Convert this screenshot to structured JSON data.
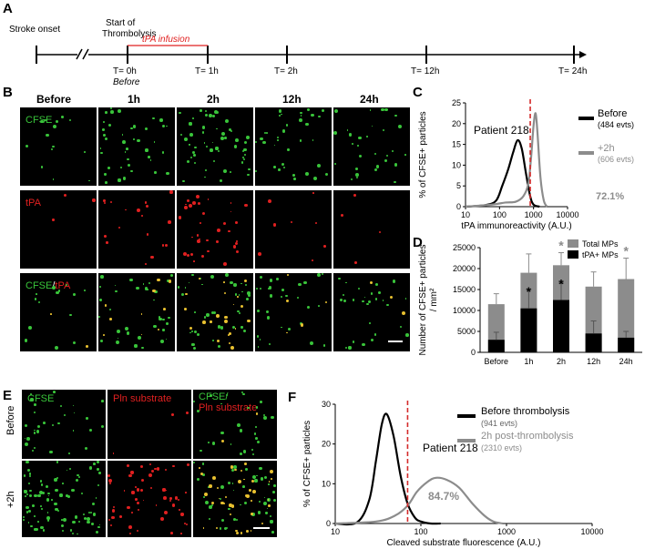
{
  "panel_labels": {
    "a": "A",
    "b": "B",
    "c": "C",
    "d": "D",
    "e": "E",
    "f": "F"
  },
  "timeline": {
    "stroke_onset": "Stroke onset",
    "start_thrombolysis_1": "Start of",
    "start_thrombolysis_2": "Thrombolysis",
    "tpa_infusion": "tPA infusion",
    "t0": "T= 0h",
    "before": "Before",
    "t1": "T= 1h",
    "t2": "T= 2h",
    "t12": "T= 12h",
    "t24": "T= 24h"
  },
  "panel_b": {
    "columns": [
      "Before",
      "1h",
      "2h",
      "12h",
      "24h"
    ],
    "row_cfse": "CFSE",
    "row_tpa": "tPA",
    "merge_a": "CFSE",
    "merge_sep": "/",
    "merge_b": "tPA"
  },
  "panel_e": {
    "col_cfse": "CFSE",
    "col_pln": "Pln substrate",
    "merge_a": "CFSE/",
    "merge_b": "Pln substrate",
    "row_before": "Before",
    "row_2h": "+2h"
  },
  "colors": {
    "green": "#39c43a",
    "red": "#e02020",
    "gray": "#8c8c8c",
    "dashed": "#d42a2a",
    "orange": "#e8c030"
  },
  "chart_data": [
    {
      "id": "C",
      "type": "line",
      "title": "Patient 218",
      "xlabel": "tPA immunoreactivity (A.U.)",
      "ylabel": "% of CFSE+ particles",
      "xscale": "log",
      "xlim": [
        10,
        10000
      ],
      "ylim": [
        0,
        25
      ],
      "xticks": [
        "10",
        "100",
        "1000",
        "10000"
      ],
      "yticks": [
        "0",
        "5",
        "10",
        "15",
        "20",
        "25"
      ],
      "threshold_x": 800,
      "annotation": "72.1%",
      "series": [
        {
          "name": "Before",
          "sub": "(484 evts)",
          "color": "#000000",
          "x": [
            10,
            40,
            80,
            120,
            180,
            250,
            340,
            450,
            600,
            800,
            1000,
            1500
          ],
          "y": [
            0,
            0.4,
            1.5,
            5,
            9,
            13,
            16,
            14,
            8,
            2.5,
            0.5,
            0
          ]
        },
        {
          "name": "+2h",
          "sub": "(606 evts)",
          "color": "#8c8c8c",
          "x": [
            10,
            60,
            150,
            300,
            500,
            700,
            850,
            1000,
            1150,
            1300,
            1600,
            2000,
            2500
          ],
          "y": [
            0,
            0.5,
            1,
            1.2,
            2.5,
            5.5,
            12,
            19.5,
            22.5,
            18,
            7,
            1.5,
            0
          ]
        }
      ]
    },
    {
      "id": "D",
      "type": "bar",
      "ylabel": "Number of CFSE+ particles / mm²",
      "categories": [
        "Before",
        "1h",
        "2h",
        "12h",
        "24h"
      ],
      "ylim": [
        0,
        25000
      ],
      "yticks": [
        "0",
        "5000",
        "10000",
        "15000",
        "20000",
        "25000"
      ],
      "series": [
        {
          "name": "Total MPs",
          "color": "#8c8c8c",
          "values": [
            11500,
            19000,
            20800,
            15700,
            17500
          ],
          "err": [
            2500,
            4500,
            3000,
            3500,
            5000
          ]
        },
        {
          "name": "tPA+ MPs",
          "color": "#000000",
          "values": [
            3000,
            10500,
            12500,
            4500,
            3500
          ],
          "err": [
            1800,
            4500,
            4000,
            3000,
            1500
          ]
        }
      ],
      "stars": [
        {
          "cat": "1h",
          "series": "tPA+ MPs",
          "text": "*"
        },
        {
          "cat": "2h",
          "series": "Total MPs",
          "text": "*"
        },
        {
          "cat": "2h",
          "series": "tPA+ MPs",
          "text": "*"
        },
        {
          "cat": "24h",
          "series": "Total MPs",
          "text": "*"
        }
      ]
    },
    {
      "id": "F",
      "type": "line",
      "title": "Patient 218",
      "xlabel": "Cleaved  substrate fluorescence (A.U.)",
      "ylabel": "% of CFSE+ particles",
      "xscale": "log",
      "xlim": [
        10,
        10000
      ],
      "ylim": [
        0,
        30
      ],
      "xticks": [
        "10",
        "100",
        "1000",
        "10000"
      ],
      "yticks": [
        "0",
        "10",
        "20",
        "30"
      ],
      "threshold_x": 70,
      "annotation": "84.7%",
      "series": [
        {
          "name": "Before thrombolysis",
          "sub": "(941 evts)",
          "color": "#000000",
          "x": [
            10,
            18,
            25,
            30,
            35,
            40,
            48,
            58,
            70,
            85,
            100,
            130,
            170
          ],
          "y": [
            0,
            0.3,
            6,
            16,
            25,
            27.5,
            22,
            12,
            5,
            1.5,
            0.5,
            0,
            0
          ]
        },
        {
          "name": "2h post-thrombolysis",
          "sub": "(2310 evts)",
          "color": "#8c8c8c",
          "x": [
            10,
            30,
            50,
            70,
            90,
            120,
            150,
            200,
            280,
            400,
            550,
            700,
            900
          ],
          "y": [
            0,
            0.5,
            2,
            4.5,
            8,
            10.5,
            11.5,
            11,
            9,
            5,
            2,
            0.5,
            0
          ]
        }
      ]
    }
  ]
}
